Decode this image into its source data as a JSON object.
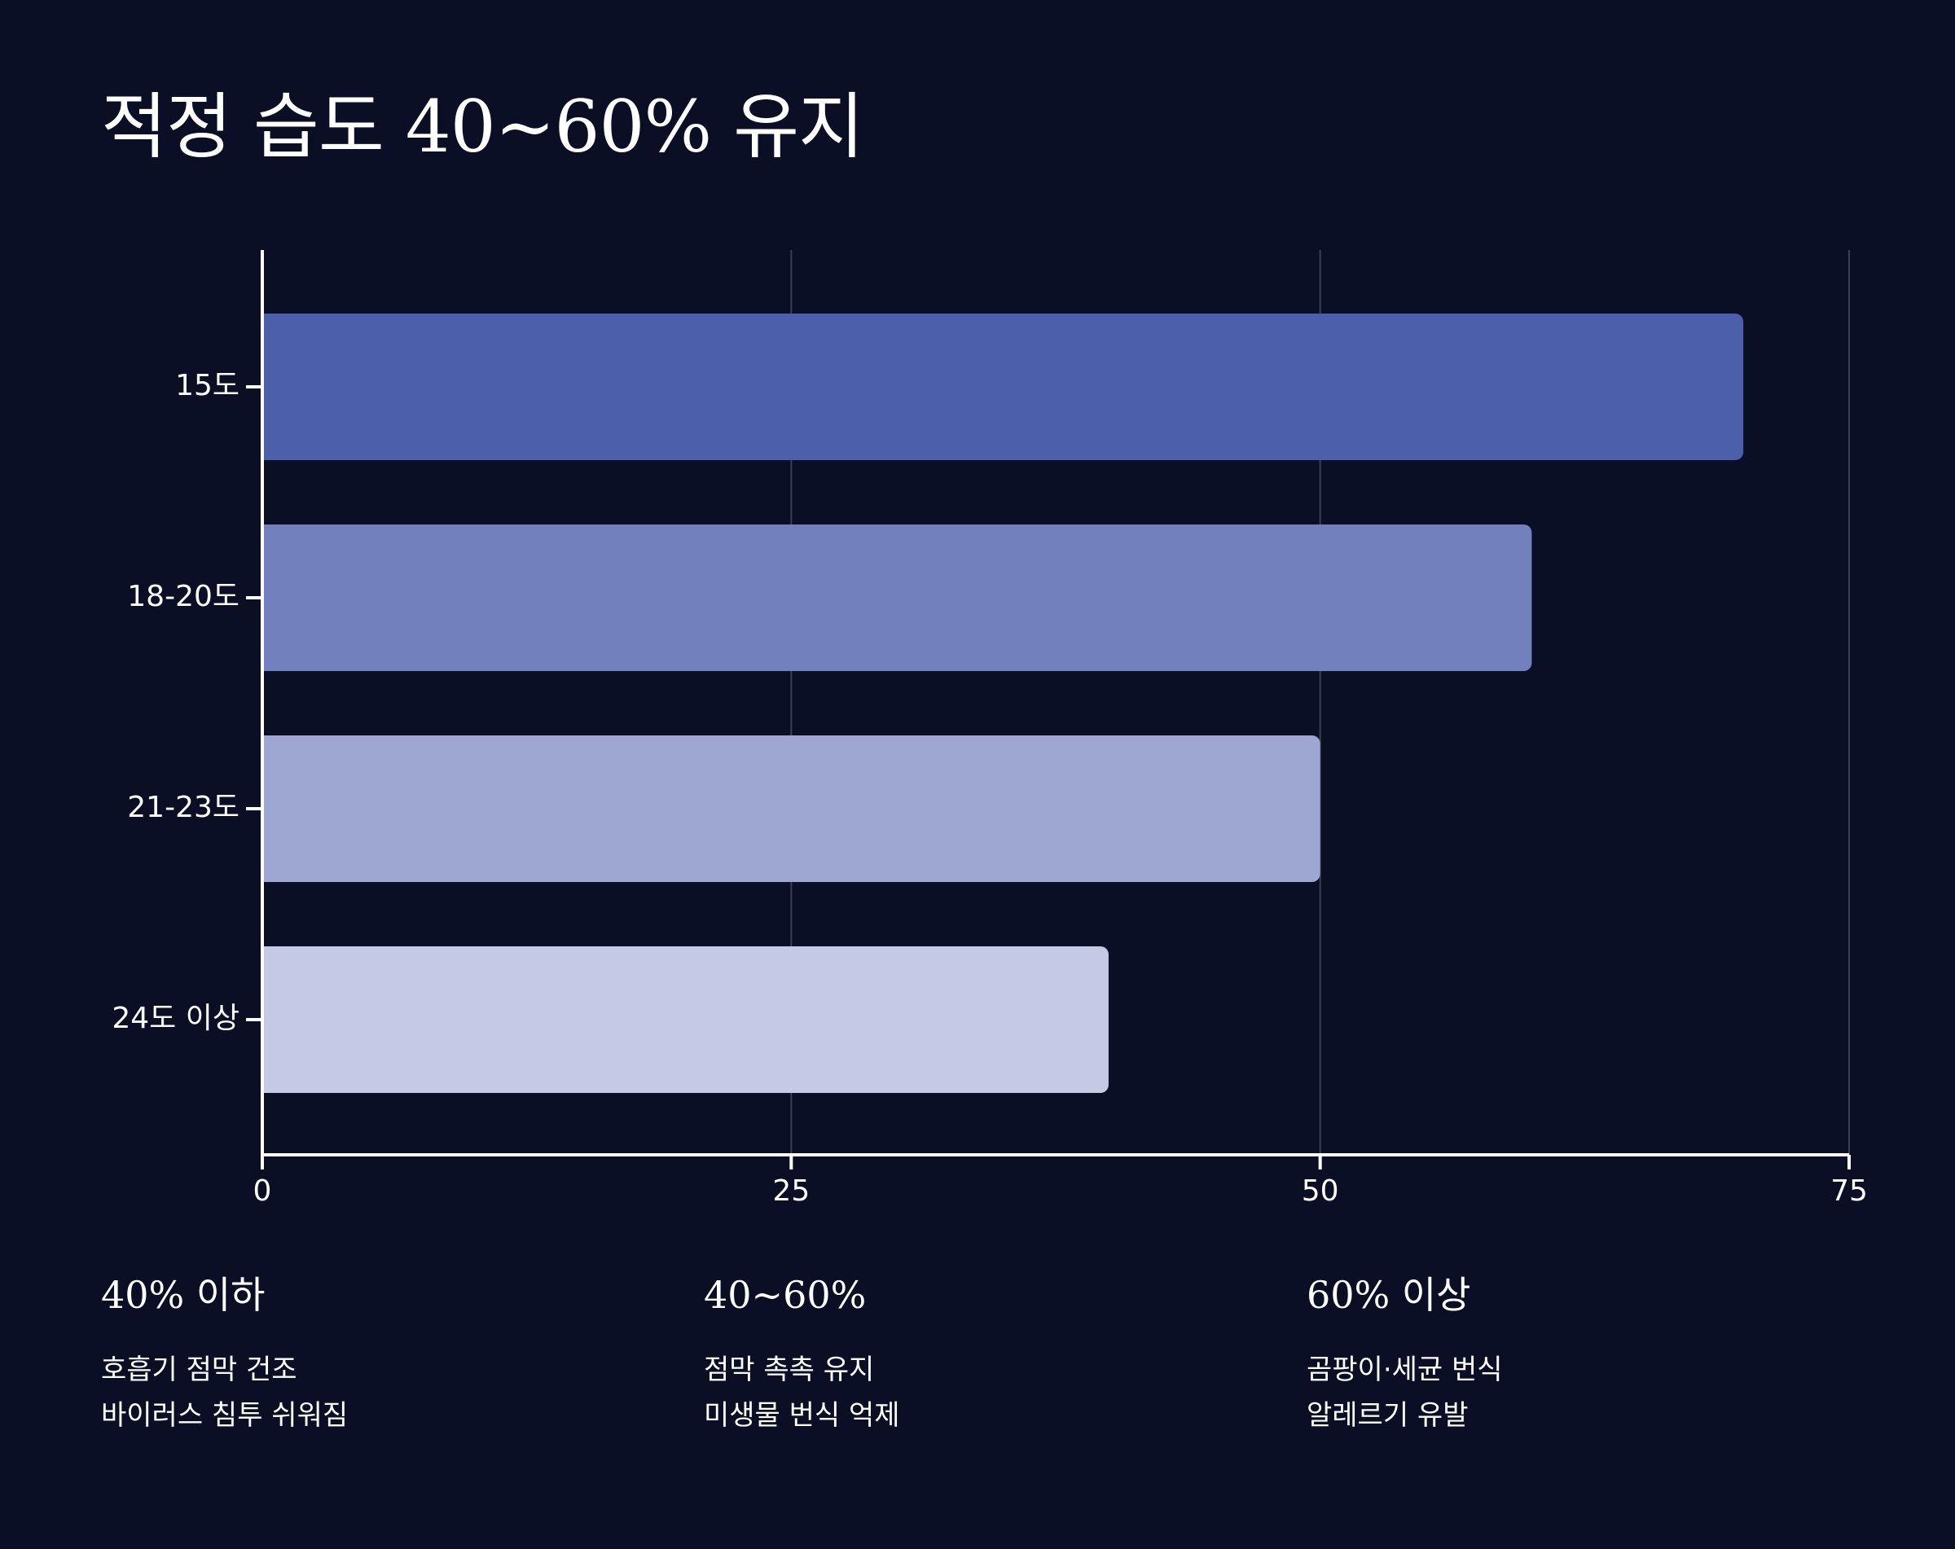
{
  "title": "적정 습도 40~60% 유지",
  "chart_data": {
    "type": "bar",
    "orientation": "horizontal",
    "categories": [
      "15도",
      "18-20도",
      "21-23도",
      "24도 이상"
    ],
    "values": [
      70,
      60,
      50,
      40
    ],
    "colors": [
      "#4b5fab",
      "#7280be",
      "#9da7d2",
      "#c4c9e6"
    ],
    "xlim": [
      0,
      75
    ],
    "xticks": [
      0,
      25,
      50,
      75
    ],
    "xticklabels": [
      "0",
      "25",
      "50",
      "75"
    ],
    "grid": true,
    "title": "",
    "xlabel": "",
    "ylabel": ""
  },
  "info": [
    {
      "heading": "40% 이하",
      "lines": [
        "호흡기 점막 건조",
        "바이러스 침투 쉬워짐"
      ]
    },
    {
      "heading": "40~60%",
      "lines": [
        "점막 촉촉 유지",
        "미생물 번식 억제"
      ]
    },
    {
      "heading": "60% 이상",
      "lines": [
        "곰팡이·세균 번식",
        "알레르기 유발"
      ]
    }
  ]
}
